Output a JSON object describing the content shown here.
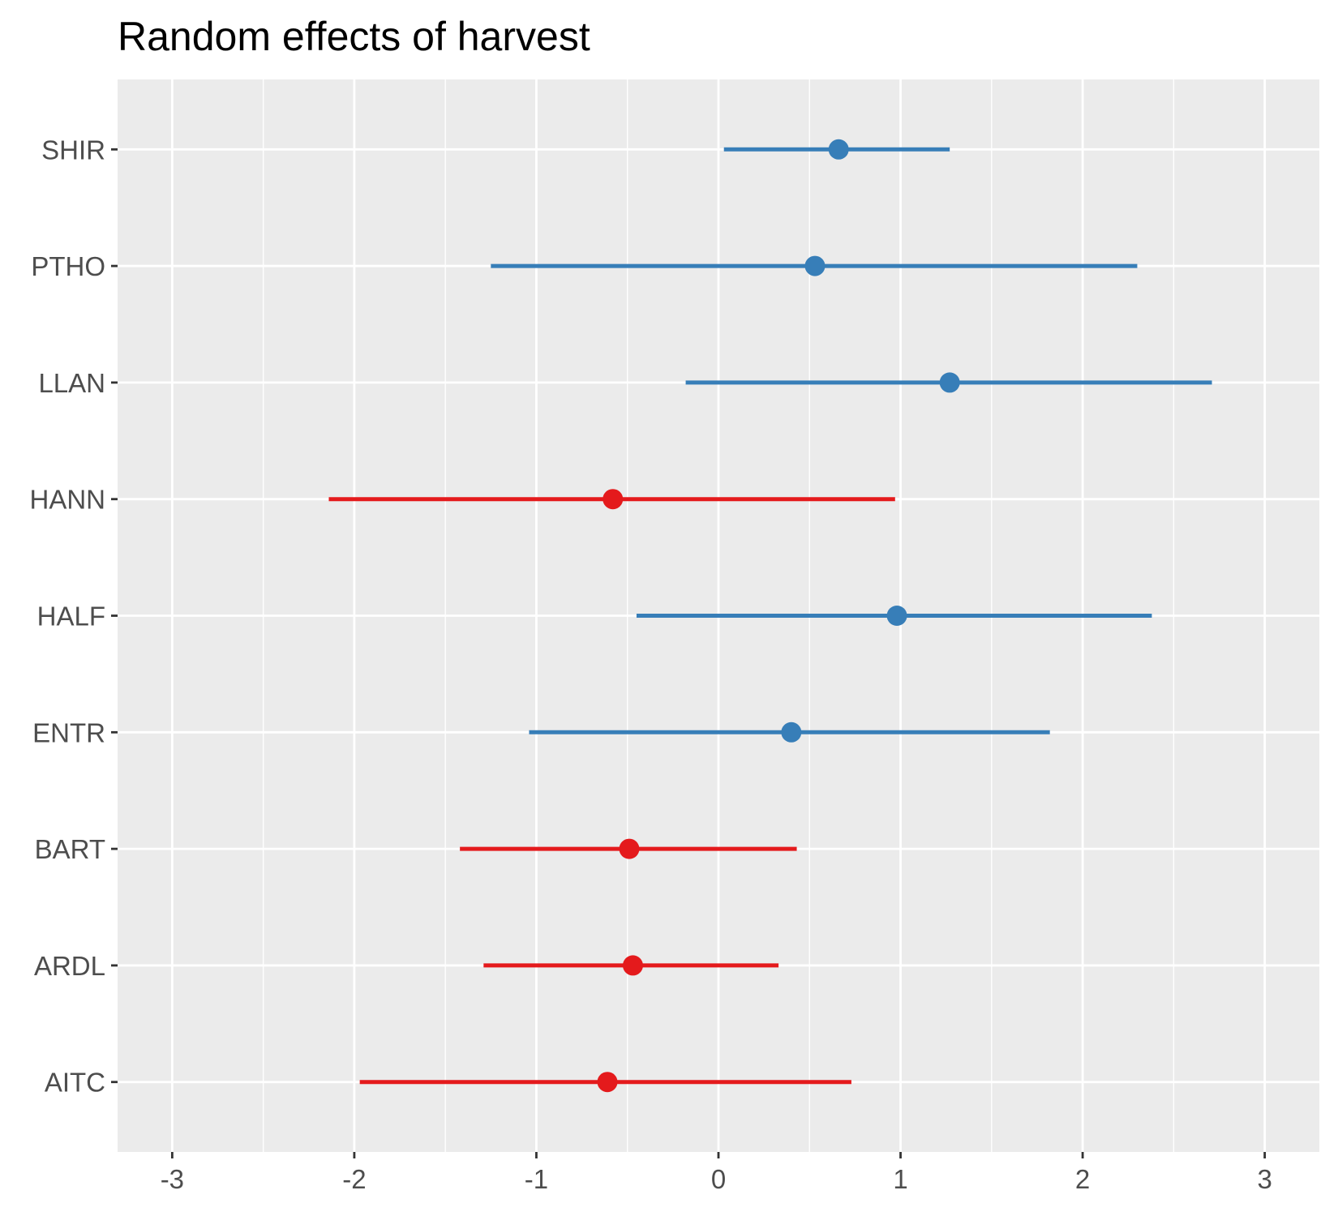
{
  "chart_data": {
    "type": "scatter",
    "title": "Random effects of harvest",
    "xlabel": "",
    "ylabel": "",
    "xlim": [
      -3.3,
      3.3
    ],
    "x_ticks": [
      -3,
      -2,
      -1,
      0,
      1,
      2,
      3
    ],
    "x_tick_labels": [
      "-3",
      "-2",
      "-1",
      "0",
      "1",
      "2",
      "3"
    ],
    "categories": [
      "SHIR",
      "PTHO",
      "LLAN",
      "HANN",
      "HALF",
      "ENTR",
      "BART",
      "ARDL",
      "AITC"
    ],
    "estimates": [
      0.66,
      0.53,
      1.27,
      -0.58,
      0.98,
      0.4,
      -0.49,
      -0.47,
      -0.61
    ],
    "lower": [
      0.03,
      -1.25,
      -0.18,
      -2.14,
      -0.45,
      -1.04,
      -1.42,
      -1.29,
      -1.97
    ],
    "upper": [
      1.27,
      2.3,
      2.71,
      0.97,
      2.38,
      1.82,
      0.43,
      0.33,
      0.73
    ],
    "sign": [
      "positive",
      "positive",
      "positive",
      "negative",
      "positive",
      "positive",
      "negative",
      "negative",
      "negative"
    ],
    "grid": true,
    "legend": "none",
    "colors": {
      "positive": "#377EB8",
      "negative": "#E41A1C",
      "panel_background": "#EBEBEB",
      "grid_line": "#FFFFFF",
      "tick_label": "#4D4D4D",
      "tick_mark": "#333333"
    }
  }
}
